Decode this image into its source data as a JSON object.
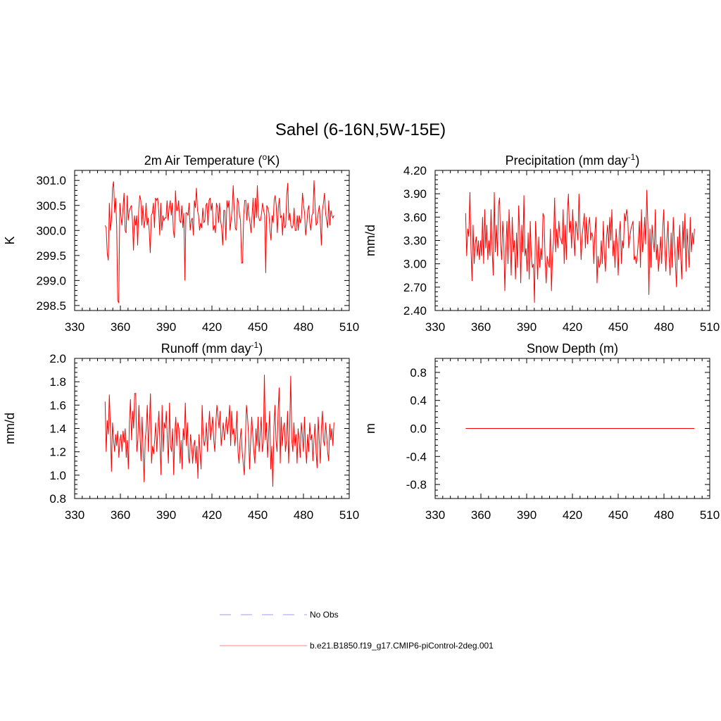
{
  "figure": {
    "title": "Sahel (6-16N,5W-15E)"
  },
  "legend": {
    "entries": [
      {
        "label": "No Obs",
        "color": "#9999ff",
        "style": "dashed"
      },
      {
        "label": "b.e21.B1850.f19_g17.CMIP6-piControl-2deg.001",
        "color": "#ff8080",
        "style": "solid"
      }
    ]
  },
  "chart_data": [
    {
      "type": "line",
      "title": "2m Air Temperature (oK)",
      "title_parts": {
        "pre": "2m Air Temperature (",
        "sup": "o",
        "post": "K)"
      },
      "ylabel": "K",
      "xlim": [
        330,
        510
      ],
      "xticks": [
        330,
        360,
        390,
        420,
        450,
        480,
        510
      ],
      "ylim": [
        298.4,
        301.2
      ],
      "yticks": [
        298.5,
        299.0,
        299.5,
        300.0,
        300.5,
        301.0
      ],
      "ytick_labels": [
        "298.5",
        "299.0",
        "299.5",
        "300.0",
        "300.5",
        "301.0"
      ],
      "x_start": 350,
      "series": [
        {
          "name": "b.e21.B1850.f19_g17.CMIP6-piControl-2deg.001",
          "color": "#ff0000",
          "values": [
            300.1,
            300.05,
            299.55,
            299.4,
            300.55,
            300.0,
            300.2,
            300.85,
            300.98,
            300.35,
            300.65,
            300.1,
            298.6,
            298.55,
            300.55,
            300.3,
            300.1,
            300.45,
            300.75,
            300.0,
            299.95,
            300.7,
            300.2,
            300.4,
            300.45,
            300.5,
            300.2,
            299.6,
            300.3,
            300.1,
            300.3,
            299.7,
            300.4,
            300.7,
            300.6,
            300.1,
            300.5,
            300.05,
            300.2,
            300.55,
            300.1,
            300.25,
            300.0,
            299.55,
            300.3,
            300.35,
            300.55,
            300.05,
            300.65,
            300.6,
            300.65,
            300.4,
            299.9,
            300.55,
            300.0,
            300.3,
            300.2,
            300.25,
            300.25,
            300.6,
            300.2,
            300.45,
            300.6,
            300.3,
            300.55,
            300.0,
            299.85,
            300.8,
            300.4,
            300.4,
            300.6,
            300.2,
            300.15,
            300.5,
            300.05,
            300.35,
            299.0,
            300.35,
            300.35,
            300.3,
            300.55,
            300.0,
            300.2,
            300.25,
            299.9,
            300.6,
            300.45,
            300.85,
            300.4,
            300.3,
            300.0,
            300.15,
            300.05,
            300.45,
            300.15,
            300.2,
            300.5,
            300.55,
            300.1,
            300.6,
            300.65,
            300.4,
            300.55,
            300.0,
            300.1,
            299.95,
            300.55,
            300.45,
            300.15,
            300.55,
            300.2,
            300.05,
            299.7,
            300.4,
            300.4,
            299.8,
            300.6,
            300.45,
            300.6,
            300.0,
            300.2,
            300.4,
            300.9,
            300.4,
            300.05,
            300.0,
            300.65,
            300.55,
            300.3,
            300.2,
            299.35,
            299.35,
            300.3,
            300.6,
            300.6,
            300.2,
            300.55,
            300.3,
            300.15,
            299.95,
            300.3,
            300.65,
            300.05,
            300.65,
            300.25,
            300.9,
            300.3,
            300.2,
            300.2,
            300.35,
            300.55,
            300.4,
            300.3,
            299.15,
            300.5,
            300.45,
            300.35,
            300.0,
            299.8,
            300.3,
            300.15,
            300.6,
            300.7,
            300.5,
            299.95,
            300.45,
            300.65,
            300.25,
            300.3,
            299.9,
            300.35,
            300.05,
            300.1,
            300.7,
            300.95,
            300.2,
            300.35,
            300.1,
            300.05,
            300.1,
            300.45,
            300.0,
            300.0,
            300.3,
            300.0,
            300.3,
            300.15,
            300.25,
            300.75,
            300.5,
            300.35,
            299.9,
            300.1,
            300.4,
            300.5,
            300.15,
            300.0,
            300.3,
            300.35,
            301.0,
            300.5,
            300.1,
            300.15,
            300.35,
            300.5,
            300.15,
            299.7,
            300.4,
            300.55,
            300.75,
            300.35,
            300.2,
            300.05,
            300.6,
            300.1,
            300.4,
            300.3,
            300.25,
            300.3
          ]
        }
      ]
    },
    {
      "type": "line",
      "title": "Precipitation (mm day-1)",
      "title_parts": {
        "pre": "Precipitation (mm day",
        "sup": "-1",
        "post": ")"
      },
      "ylabel": "mm/d",
      "xlim": [
        330,
        510
      ],
      "xticks": [
        330,
        360,
        390,
        420,
        450,
        480,
        510
      ],
      "ylim": [
        2.4,
        4.2
      ],
      "yticks": [
        2.4,
        2.7,
        3.0,
        3.3,
        3.6,
        3.9,
        4.2
      ],
      "ytick_labels": [
        "2.40",
        "2.70",
        "3.00",
        "3.30",
        "3.60",
        "3.90",
        "4.20"
      ],
      "x_start": 350,
      "series": [
        {
          "name": "b.e21.B1850.f19_g17.CMIP6-piControl-2deg.001",
          "color": "#ff0000",
          "values": [
            3.65,
            3.1,
            3.45,
            3.35,
            3.92,
            3.2,
            2.78,
            3.5,
            3.0,
            3.25,
            3.35,
            3.1,
            3.3,
            3.05,
            3.3,
            3.1,
            3.6,
            3.0,
            3.7,
            3.2,
            3.5,
            3.05,
            3.3,
            3.1,
            3.7,
            3.2,
            2.85,
            3.92,
            3.15,
            3.5,
            3.1,
            3.75,
            3.85,
            3.25,
            3.05,
            3.55,
            3.3,
            2.65,
            3.2,
            3.55,
            3.0,
            3.7,
            3.3,
            2.85,
            3.6,
            3.15,
            3.3,
            2.8,
            3.4,
            2.95,
            3.75,
            3.4,
            2.75,
            3.5,
            3.15,
            3.88,
            3.1,
            3.2,
            2.9,
            3.4,
            2.8,
            3.55,
            3.1,
            2.95,
            3.0,
            2.5,
            3.55,
            3.25,
            2.8,
            3.35,
            2.95,
            3.2,
            3.05,
            3.65,
            3.6,
            3.05,
            2.75,
            3.1,
            3.0,
            2.95,
            3.45,
            2.65,
            3.1,
            3.3,
            3.85,
            3.15,
            3.45,
            3.2,
            3.55,
            3.35,
            3.3,
            3.25,
            3.7,
            3.0,
            3.5,
            3.05,
            3.65,
            3.9,
            3.4,
            3.55,
            3.2,
            3.7,
            3.4,
            3.1,
            3.55,
            3.45,
            3.3,
            3.9,
            3.45,
            3.05,
            3.35,
            3.5,
            3.65,
            3.2,
            3.6,
            3.25,
            3.5,
            3.6,
            3.3,
            3.4,
            3.35,
            3.0,
            3.4,
            3.6,
            2.75,
            3.1,
            2.95,
            3.0,
            3.3,
            3.0,
            3.55,
            3.1,
            2.9,
            3.35,
            3.5,
            3.2,
            3.6,
            3.3,
            3.7,
            3.1,
            3.3,
            2.95,
            3.45,
            3.25,
            2.85,
            3.4,
            3.55,
            3.0,
            3.3,
            3.2,
            3.65,
            3.55,
            3.7,
            3.6,
            3.2,
            3.35,
            3.45,
            3.5,
            3.55,
            3.05,
            3.1,
            3.0,
            3.1,
            3.3,
            3.55,
            2.95,
            3.7,
            3.15,
            3.3,
            3.6,
            3.25,
            3.95,
            3.5,
            2.6,
            3.45,
            2.95,
            3.5,
            3.3,
            3.15,
            3.7,
            3.05,
            3.25,
            2.9,
            3.1,
            3.35,
            3.0,
            3.45,
            3.7,
            3.2,
            2.9,
            3.3,
            3.55,
            3.1,
            2.85,
            3.4,
            2.95,
            3.6,
            3.3,
            3.0,
            2.7,
            3.35,
            3.05,
            3.5,
            3.1,
            2.8,
            3.55,
            3.2,
            3.65,
            2.9,
            3.45,
            3.2,
            2.95,
            3.6,
            3.15,
            3.4,
            3.25,
            3.45
          ]
        }
      ]
    },
    {
      "type": "line",
      "title": "Runoff (mm day-1)",
      "title_parts": {
        "pre": "Runoff (mm day",
        "sup": "-1",
        "post": ")"
      },
      "ylabel": "mm/d",
      "xlim": [
        330,
        510
      ],
      "xticks": [
        330,
        360,
        390,
        420,
        450,
        480,
        510
      ],
      "ylim": [
        0.8,
        2.0
      ],
      "yticks": [
        0.8,
        1.0,
        1.2,
        1.4,
        1.6,
        1.8,
        2.0
      ],
      "ytick_labels": [
        "0.8",
        "1.0",
        "1.2",
        "1.4",
        "1.6",
        "1.8",
        "2.0"
      ],
      "x_start": 350,
      "series": [
        {
          "name": "b.e21.B1850.f19_g17.CMIP6-piControl-2deg.001",
          "color": "#ff0000",
          "values": [
            1.63,
            1.2,
            1.47,
            1.35,
            1.69,
            1.4,
            1.03,
            1.45,
            1.3,
            1.2,
            1.35,
            1.25,
            1.38,
            1.15,
            1.3,
            1.35,
            1.2,
            1.38,
            1.28,
            1.4,
            1.15,
            1.3,
            1.05,
            1.45,
            1.65,
            1.3,
            1.55,
            1.4,
            1.7,
            1.7,
            1.2,
            1.3,
            1.6,
            1.35,
            1.12,
            1.5,
            1.2,
            0.94,
            1.3,
            1.4,
            1.6,
            1.2,
            1.45,
            1.7,
            1.1,
            1.25,
            1.18,
            1.3,
            1.45,
            1.2,
            1.4,
            1.55,
            1.25,
            1.0,
            1.6,
            1.2,
            1.45,
            1.4,
            1.55,
            1.3,
            1.1,
            1.62,
            1.25,
            1.2,
            1.4,
            1.0,
            1.35,
            1.5,
            1.25,
            1.45,
            1.4,
            1.1,
            1.3,
            1.05,
            1.4,
            1.3,
            1.62,
            1.25,
            1.45,
            1.15,
            1.1,
            1.35,
            1.25,
            1.1,
            1.25,
            1.3,
            1.1,
            1.25,
            0.97,
            1.35,
            1.2,
            1.05,
            1.6,
            1.35,
            1.25,
            1.3,
            1.45,
            1.2,
            1.4,
            1.55,
            1.3,
            1.4,
            1.5,
            1.3,
            1.2,
            1.45,
            1.6,
            1.5,
            1.4,
            1.55,
            1.25,
            1.35,
            1.45,
            1.3,
            1.4,
            1.5,
            1.35,
            1.45,
            1.6,
            1.25,
            1.55,
            1.35,
            1.4,
            1.25,
            1.35,
            1.55,
            1.2,
            1.1,
            1.3,
            1.4,
            1.2,
            1.1,
            1.0,
            1.3,
            1.6,
            1.5,
            1.35,
            1.05,
            1.3,
            1.5,
            1.35,
            1.2,
            1.1,
            1.4,
            1.25,
            1.5,
            1.2,
            1.35,
            1.5,
            1.2,
            1.28,
            1.86,
            1.3,
            1.45,
            1.15,
            1.35,
            1.55,
            1.05,
            1.25,
            0.9,
            1.4,
            1.6,
            1.3,
            1.2,
            1.55,
            1.75,
            1.1,
            1.5,
            1.25,
            1.4,
            1.45,
            1.2,
            1.3,
            1.55,
            1.1,
            1.4,
            1.85,
            1.3,
            1.2,
            1.45,
            1.25,
            1.35,
            1.1,
            1.4,
            1.3,
            1.15,
            1.45,
            1.35,
            1.2,
            1.5,
            1.25,
            1.1,
            1.35,
            1.2,
            1.45,
            1.3,
            1.35,
            1.12,
            1.3,
            1.44,
            1.2,
            1.06,
            1.5,
            1.3,
            1.1,
            1.4,
            1.55,
            1.3,
            1.25,
            1.45,
            1.35,
            1.2,
            1.12,
            1.44,
            1.3,
            1.4,
            1.25,
            1.45
          ]
        }
      ]
    },
    {
      "type": "line",
      "title": "Snow Depth (m)",
      "title_parts": {
        "pre": "Snow Depth (m)",
        "sup": "",
        "post": ""
      },
      "ylabel": "m",
      "xlim": [
        330,
        510
      ],
      "xticks": [
        330,
        360,
        390,
        420,
        450,
        480,
        510
      ],
      "ylim": [
        -1.0,
        1.0
      ],
      "yticks": [
        -0.8,
        -0.4,
        0.0,
        0.4,
        0.8
      ],
      "ytick_labels": [
        "-0.8",
        "-0.4",
        "0.0",
        "0.4",
        "0.8"
      ],
      "x_start": 350,
      "series": [
        {
          "name": "b.e21.B1850.f19_g17.CMIP6-piControl-2deg.001",
          "color": "#ff0000",
          "x": [
            350,
            500
          ],
          "values": [
            0.0,
            0.0
          ]
        }
      ]
    }
  ]
}
